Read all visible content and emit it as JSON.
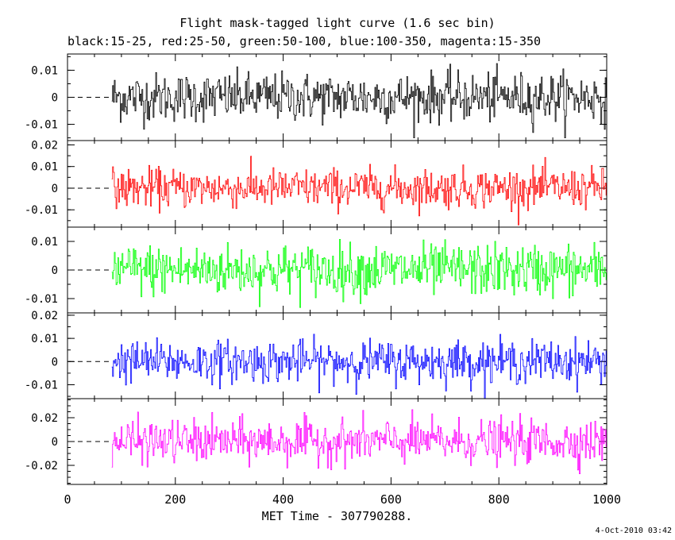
{
  "chart_data": {
    "type": "line",
    "title": "Flight mask-tagged light curve (1.6 sec bin)",
    "subtitle": "black:15-25, red:25-50, green:50-100, blue:100-350, magenta:15-350",
    "xlabel": "MET Time - 307790288.",
    "xlim": [
      0,
      1000
    ],
    "x_ticks": [
      "0",
      "200",
      "400",
      "600",
      "800",
      "1000"
    ],
    "data_x_range": [
      82,
      1000
    ],
    "bin_sec": 1.6,
    "panels": [
      {
        "name": "15-25",
        "color": "#000000",
        "ylim": [
          -0.016,
          0.016
        ],
        "y_ticks": [
          "0.01",
          "0",
          "-0.01"
        ],
        "amplitude": 0.0045,
        "spike_max": 0.015
      },
      {
        "name": "25-50",
        "color": "#ff0000",
        "ylim": [
          -0.018,
          0.022
        ],
        "y_ticks": [
          "0.02",
          "0.01",
          "0",
          "-0.01"
        ],
        "amplitude": 0.0045,
        "spike_max": 0.017
      },
      {
        "name": "50-100",
        "color": "#00ff00",
        "ylim": [
          -0.015,
          0.015
        ],
        "y_ticks": [
          "0.01",
          "0",
          "-0.01"
        ],
        "amplitude": 0.0045,
        "spike_max": 0.014
      },
      {
        "name": "100-350",
        "color": "#0000ff",
        "ylim": [
          -0.016,
          0.021
        ],
        "y_ticks": [
          "0.02",
          "0.01",
          "0",
          "-0.01"
        ],
        "amplitude": 0.0045,
        "spike_max": 0.016
      },
      {
        "name": "15-350",
        "color": "#ff00ff",
        "ylim": [
          -0.036,
          0.036
        ],
        "y_ticks": [
          "0.02",
          "0",
          "-0.02"
        ],
        "amplitude": 0.009,
        "spike_max": 0.033
      }
    ]
  },
  "timestamp": "4-Oct-2010 03:42"
}
